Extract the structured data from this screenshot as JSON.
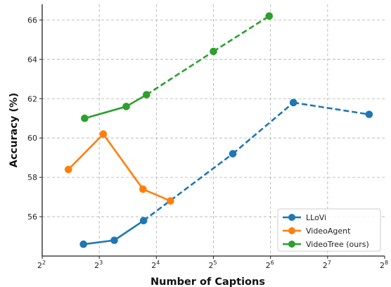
{
  "chart_data": {
    "type": "line",
    "title": "",
    "xlabel": "Number of Captions",
    "ylabel": "Accuracy (%)",
    "x_scale": "log2",
    "xlim": [
      4,
      256
    ],
    "ylim": [
      54.0,
      66.8
    ],
    "x_ticks": [
      4,
      8,
      16,
      32,
      64,
      128,
      256
    ],
    "x_tick_labels": [
      {
        "base": "2",
        "exp": "2"
      },
      {
        "base": "2",
        "exp": "3"
      },
      {
        "base": "2",
        "exp": "4"
      },
      {
        "base": "2",
        "exp": "5"
      },
      {
        "base": "2",
        "exp": "6"
      },
      {
        "base": "2",
        "exp": "7"
      },
      {
        "base": "2",
        "exp": "8"
      }
    ],
    "y_ticks": [
      56,
      58,
      60,
      62,
      64,
      66
    ],
    "y_tick_labels": [
      "56",
      "58",
      "60",
      "62",
      "64",
      "66"
    ],
    "grid": true,
    "legend_position": "lower-right",
    "series": [
      {
        "name": "LLoVi",
        "color": "#1f77b4",
        "points": [
          {
            "x": 6.6,
            "y": 54.6
          },
          {
            "x": 9.6,
            "y": 54.8
          },
          {
            "x": 13.7,
            "y": 55.8
          },
          {
            "x": 40.5,
            "y": 59.2
          },
          {
            "x": 84.5,
            "y": 61.8
          },
          {
            "x": 212.0,
            "y": 61.2
          }
        ],
        "segment_styles": [
          "solid",
          "solid",
          "dashed",
          "dashed",
          "dashed"
        ]
      },
      {
        "name": "VideoAgent",
        "color": "#ff7f0e",
        "points": [
          {
            "x": 5.5,
            "y": 58.4
          },
          {
            "x": 8.4,
            "y": 60.2
          },
          {
            "x": 13.6,
            "y": 57.4
          },
          {
            "x": 19.0,
            "y": 56.8
          }
        ],
        "segment_styles": [
          "solid",
          "solid",
          "solid"
        ]
      },
      {
        "name": "VideoTree (ours)",
        "color": "#2ca02c",
        "points": [
          {
            "x": 6.7,
            "y": 61.0
          },
          {
            "x": 11.1,
            "y": 61.6
          },
          {
            "x": 14.2,
            "y": 62.2
          },
          {
            "x": 32.0,
            "y": 64.4
          },
          {
            "x": 63.0,
            "y": 66.2
          }
        ],
        "segment_styles": [
          "solid",
          "solid",
          "dashed",
          "dashed"
        ]
      }
    ]
  }
}
